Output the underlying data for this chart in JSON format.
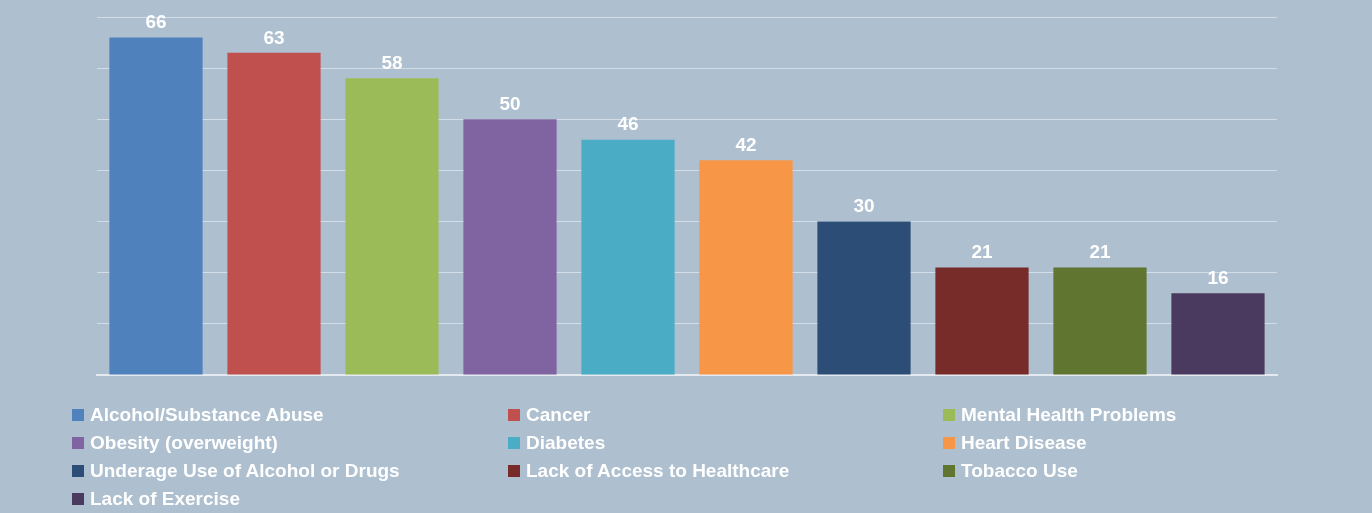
{
  "chart_data": {
    "type": "bar",
    "categories": [
      null,
      null,
      null,
      null,
      null,
      null,
      null,
      null,
      null,
      null
    ],
    "stacked": true,
    "series": [
      {
        "name": "Alcohol/Substance Abuse",
        "color": "#4f81bd",
        "values": [
          66,
          null,
          null,
          null,
          null,
          null,
          null,
          null,
          null,
          null
        ]
      },
      {
        "name": "Cancer",
        "color": "#c0504d",
        "values": [
          null,
          63,
          null,
          null,
          null,
          null,
          null,
          null,
          null,
          null
        ]
      },
      {
        "name": "Mental Health Problems",
        "color": "#9bbb59",
        "values": [
          null,
          null,
          58,
          null,
          null,
          null,
          null,
          null,
          null,
          null
        ]
      },
      {
        "name": "Obesity (overweight)",
        "color": "#8064a2",
        "values": [
          null,
          null,
          null,
          50,
          null,
          null,
          null,
          null,
          null,
          null
        ]
      },
      {
        "name": "Diabetes",
        "color": "#4bacc6",
        "values": [
          null,
          null,
          null,
          null,
          46,
          null,
          null,
          null,
          null,
          null
        ]
      },
      {
        "name": "Heart Disease",
        "color": "#f79646",
        "values": [
          null,
          null,
          null,
          null,
          null,
          42,
          null,
          null,
          null,
          null
        ]
      },
      {
        "name": "Underage Use of Alcohol or Drugs",
        "color": "#2c4d75",
        "values": [
          null,
          null,
          null,
          null,
          null,
          null,
          30,
          null,
          null,
          null
        ]
      },
      {
        "name": "Lack of Access to Healthcare",
        "color": "#772c2a",
        "values": [
          null,
          null,
          null,
          null,
          null,
          null,
          null,
          21,
          null,
          null
        ]
      },
      {
        "name": "Tobacco Use",
        "color": "#5f7530",
        "values": [
          null,
          null,
          null,
          null,
          null,
          null,
          null,
          null,
          21,
          null
        ]
      },
      {
        "name": "Lack of Exercise",
        "color": "#4b3a5f",
        "values": [
          null,
          null,
          null,
          null,
          null,
          null,
          null,
          null,
          null,
          16
        ]
      }
    ],
    "ylim": [
      0,
      70
    ],
    "yticks": [
      {
        "value": 0,
        "label": null
      },
      {
        "value": 10,
        "label": null
      },
      {
        "value": 20,
        "label": null
      },
      {
        "value": 30,
        "label": null
      },
      {
        "value": 40,
        "label": null
      },
      {
        "value": 50,
        "label": null
      },
      {
        "value": 60,
        "label": null
      },
      {
        "value": 70,
        "label": null
      }
    ],
    "grid": "y",
    "tick_labels": false,
    "data_labels": true,
    "legend": "bottom"
  }
}
